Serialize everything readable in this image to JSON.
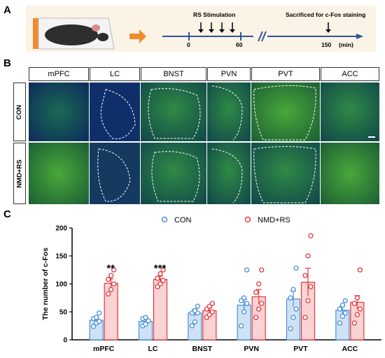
{
  "panels": {
    "a": "A",
    "b": "B",
    "c": "C"
  },
  "timeline": {
    "stim_label": "RS Stimulation",
    "sacrifice_label": "Sacrificed for c-Fos staining",
    "ticks": [
      "0",
      "60",
      "150"
    ],
    "unit": "(min)"
  },
  "colors": {
    "con": "#4a90d9",
    "nmd": "#e0393e",
    "con_fill": "#cfe2f5",
    "nmd_fill": "#fbd3d4",
    "tissue": "#1c6a5a",
    "arrow": "#f08a2e",
    "timeline_bg": "#fbf3e6"
  },
  "micrographs": {
    "regions": [
      "mPFC",
      "LC",
      "BNST",
      "PVN",
      "PVT",
      "ACC"
    ],
    "conditions": [
      "CON",
      "NMD+RS"
    ]
  },
  "chart_data": {
    "type": "bar",
    "ylabel": "The number of c-Fos",
    "ylim": [
      0,
      200
    ],
    "yticks": [
      0,
      50,
      100,
      150,
      200
    ],
    "categories": [
      "mPFC",
      "LC",
      "BNST",
      "PVN",
      "PVT",
      "ACC"
    ],
    "legend": [
      "CON",
      "NMD+RS"
    ],
    "series": [
      {
        "name": "CON",
        "values": [
          35,
          33,
          48,
          62,
          73,
          53
        ],
        "sem": [
          4,
          4,
          7,
          10,
          14,
          7
        ],
        "points": [
          [
            24,
            30,
            33,
            38,
            40,
            48
          ],
          [
            25,
            28,
            34,
            38,
            40
          ],
          [
            25,
            32,
            48,
            48,
            52,
            60
          ],
          [
            25,
            50,
            65,
            70,
            75,
            125
          ],
          [
            20,
            40,
            55,
            75,
            90,
            128
          ],
          [
            30,
            42,
            48,
            55,
            62,
            70
          ]
        ]
      },
      {
        "name": "NMD+RS",
        "values": [
          101,
          108,
          52,
          77,
          103,
          67
        ],
        "sem": [
          8,
          6,
          5,
          13,
          25,
          12
        ],
        "points": [
          [
            82,
            90,
            100,
            108,
            115,
            125
          ],
          [
            95,
            100,
            106,
            110,
            118,
            125
          ],
          [
            40,
            45,
            50,
            55,
            60,
            65
          ],
          [
            40,
            55,
            65,
            85,
            100,
            125
          ],
          [
            40,
            70,
            95,
            115,
            150,
            186
          ],
          [
            30,
            45,
            55,
            65,
            75,
            125
          ]
        ]
      }
    ],
    "significance": [
      {
        "category": "mPFC",
        "label": "**"
      },
      {
        "category": "LC",
        "label": "***"
      }
    ]
  }
}
